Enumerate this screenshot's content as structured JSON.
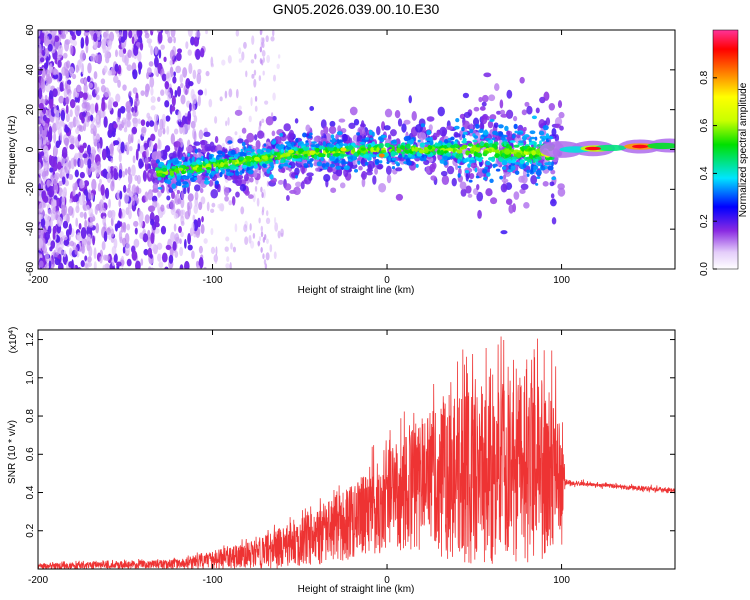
{
  "title": "GN05.2026.039.00.10.E30",
  "chart_data": [
    {
      "type": "heatmap",
      "xlabel": "Height of straight line (km)",
      "ylabel": "Frequency (Hz)",
      "xlim": [
        -200,
        165
      ],
      "ylim": [
        -60,
        60
      ],
      "xticks": [
        "-200",
        "-100",
        "0",
        "100"
      ],
      "xtick_values": [
        -200,
        -100,
        0,
        100
      ],
      "yticks": [
        "-60",
        "-40",
        "-20",
        "0",
        "20",
        "40",
        "60"
      ],
      "ytick_values": [
        -60,
        -40,
        -20,
        0,
        20,
        40,
        60
      ],
      "colorbar": {
        "label": "Normalized spectral amplitude",
        "range": [
          0,
          1
        ],
        "ticks": [
          "0.0",
          "0.2",
          "0.4",
          "0.6",
          "0.8"
        ],
        "tick_values": [
          0.0,
          0.2,
          0.4,
          0.6,
          0.8
        ]
      },
      "ridge": {
        "description_points_x": [
          -130,
          -100,
          -50,
          0,
          50,
          90,
          100,
          165
        ],
        "description_points_freq": [
          -12,
          -8,
          -2,
          0,
          0,
          -2,
          0,
          2
        ]
      }
    },
    {
      "type": "line",
      "xlabel": "Height of straight line (km)",
      "ylabel": "SNR (10 * v/v)",
      "yscale_label": "(x10",
      "yscale_exp": "4",
      "yscale_close": ")",
      "xlim": [
        -200,
        165
      ],
      "ylim": [
        0,
        1.25
      ],
      "xticks": [
        "-200",
        "-100",
        "0",
        "100"
      ],
      "xtick_values": [
        -200,
        -100,
        0,
        100
      ],
      "yticks": [
        "0.2",
        "0.4",
        "0.6",
        "0.8",
        "1.0",
        "1.2"
      ],
      "ytick_values": [
        0.2,
        0.4,
        0.6,
        0.8,
        1.0,
        1.2
      ],
      "series": [
        {
          "name": "SNR",
          "color": "#ee3333",
          "envelope_x": [
            -200,
            -120,
            -80,
            -60,
            -40,
            -20,
            0,
            20,
            40,
            60,
            80,
            100,
            102,
            120,
            165
          ],
          "envelope_upper": [
            0.03,
            0.05,
            0.14,
            0.22,
            0.32,
            0.45,
            0.62,
            0.78,
            0.95,
            1.02,
            1.05,
            0.95,
            0.48,
            0.46,
            0.43
          ],
          "envelope_lower": [
            0.0,
            0.0,
            0.0,
            0.0,
            0.02,
            0.05,
            0.08,
            0.06,
            0.03,
            0.02,
            0.03,
            0.05,
            0.42,
            0.42,
            0.39
          ]
        }
      ]
    }
  ]
}
